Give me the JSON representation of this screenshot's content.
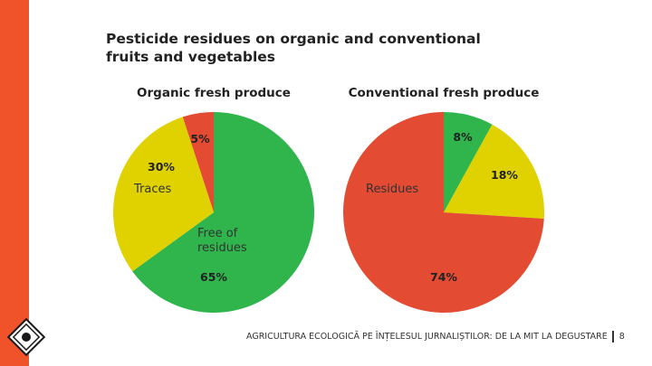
{
  "title_lines": [
    "Pesticide residues on organic and conventional",
    "fruits and vegetables"
  ],
  "footer": {
    "text": "AGRICULTURA ECOLOGICĂ PE ÎNȚELESUL JURNALIȘTILOR: DE LA MIT LA DEGUSTARE",
    "page": "8"
  },
  "chart_data": [
    {
      "type": "pie",
      "title": "Organic fresh produce",
      "slices": [
        {
          "label": "",
          "value": 5,
          "value_label": "5%",
          "color": "#e34b32"
        },
        {
          "label": "Free of residues",
          "value": 65,
          "value_label": "65%",
          "color": "#2fb54c"
        },
        {
          "label": "Traces",
          "value": 30,
          "value_label": "30%",
          "color": "#e0d200"
        }
      ]
    },
    {
      "type": "pie",
      "title": "Conventional fresh produce",
      "slices": [
        {
          "label": "",
          "value": 8,
          "value_label": "8%",
          "color": "#2fb54c"
        },
        {
          "label": "",
          "value": 18,
          "value_label": "18%",
          "color": "#e0d200"
        },
        {
          "label": "Residues",
          "value": 74,
          "value_label": "74%",
          "color": "#e34b32"
        }
      ]
    }
  ]
}
